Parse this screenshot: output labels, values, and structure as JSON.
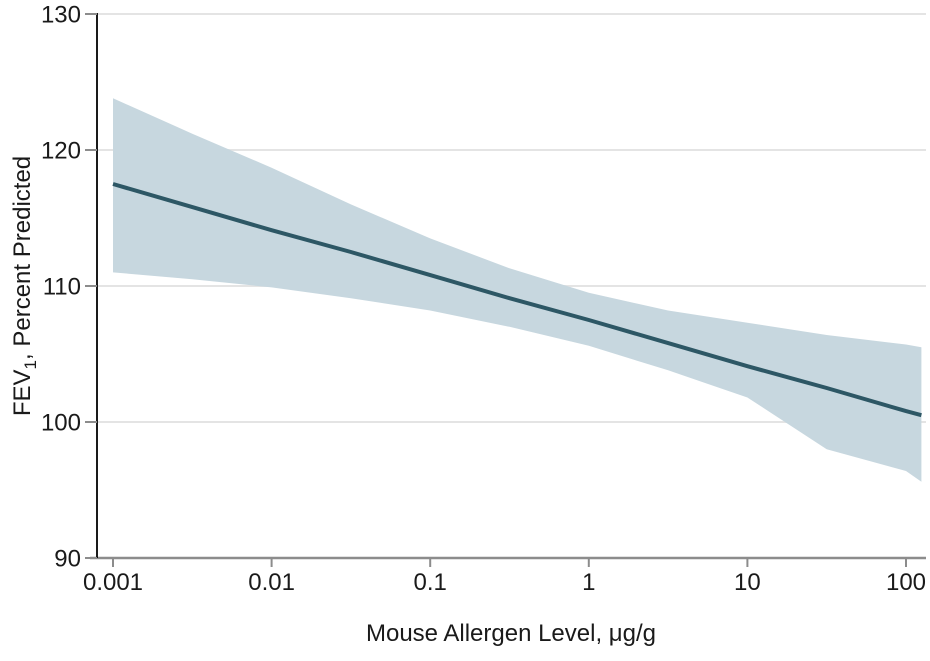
{
  "figure": {
    "background": "#ffffff"
  },
  "chart_data": {
    "type": "line",
    "title": "",
    "xlabel": "Mouse Allergen Level, μg/g",
    "ylabel": "FEV₁, Percent Predicted",
    "ylabel_parts": {
      "base": "FEV",
      "sub": "1",
      "rest": ", Percent Predicted"
    },
    "x_scale": "log10",
    "xlim": [
      0.001,
      125
    ],
    "ylim": [
      90,
      130
    ],
    "x_ticks": [
      0.001,
      0.01,
      0.1,
      1,
      10,
      100
    ],
    "x_tick_labels": [
      "0.001",
      "0.01",
      "0.1",
      "1",
      "10",
      "100"
    ],
    "y_ticks": [
      90,
      100,
      110,
      120,
      130
    ],
    "y_tick_labels": [
      "90",
      "100",
      "110",
      "120",
      "130"
    ],
    "grid": "horizontal",
    "legend": "none",
    "series": [
      {
        "name": "fitted-regression-line",
        "type": "line",
        "x": [
          0.001,
          0.00316,
          0.01,
          0.0316,
          0.1,
          0.316,
          1,
          3.16,
          10,
          31.6,
          100,
          125
        ],
        "y": [
          117.5,
          115.8,
          114.1,
          112.5,
          110.8,
          109.1,
          107.5,
          105.8,
          104.1,
          102.5,
          100.8,
          100.5
        ]
      },
      {
        "name": "95-percent-confidence-band",
        "type": "band",
        "x": [
          0.001,
          0.00316,
          0.01,
          0.0316,
          0.1,
          0.316,
          1,
          3.16,
          10,
          31.6,
          100,
          125
        ],
        "upper": [
          123.8,
          121.2,
          118.7,
          116.0,
          113.5,
          111.3,
          109.5,
          108.2,
          107.3,
          106.4,
          105.7,
          105.5
        ],
        "lower": [
          111.0,
          110.5,
          109.9,
          109.1,
          108.2,
          107.0,
          105.6,
          103.8,
          101.8,
          98.0,
          96.4,
          95.6
        ]
      }
    ],
    "colors": {
      "line": "#2d5765",
      "band": "#c7d7df",
      "grid": "#e4e4e4",
      "x_axis": "#8c8c8c",
      "y_axis": "#000000",
      "tick": "#8c8c8c",
      "text": "#1a1a1a",
      "background": "#ffffff"
    }
  }
}
